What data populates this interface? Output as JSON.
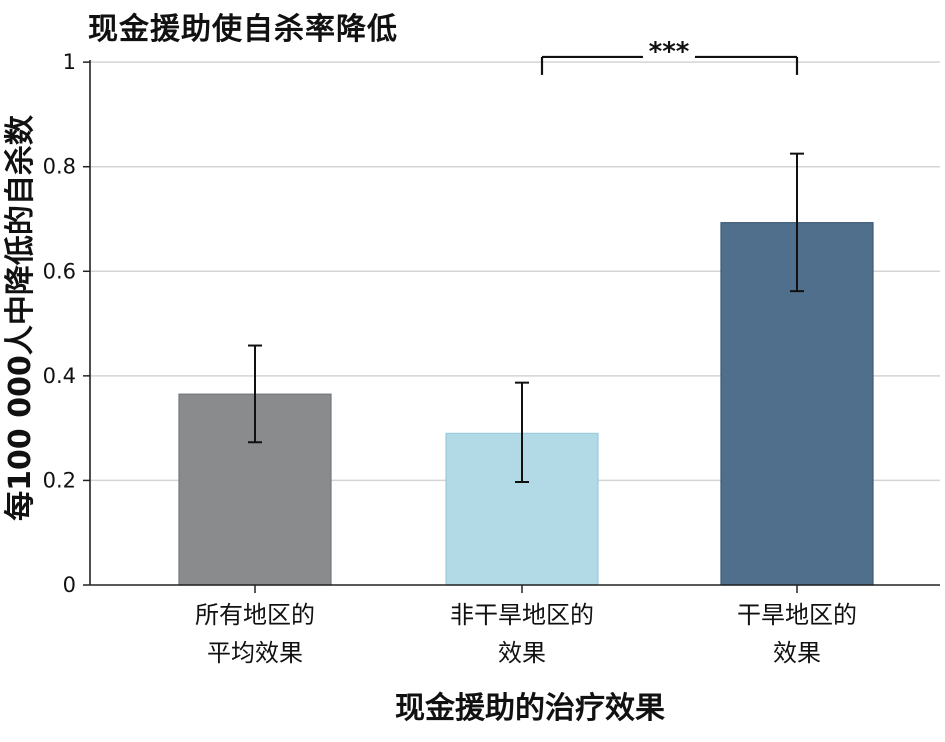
{
  "chart_data": {
    "type": "bar",
    "title": "现金援助使自杀率降低",
    "xlabel": "现金援助的治疗效果",
    "ylabel": "每100 000人中降低的自杀数",
    "ylim": [
      0,
      1.05
    ],
    "y_ticks": [
      0,
      0.2,
      0.4,
      0.6,
      0.8,
      1
    ],
    "y_tick_labels": [
      "0",
      "0.2",
      "0.4",
      "0.6",
      "0.8",
      "1"
    ],
    "grid": true,
    "categories": [
      [
        "所有地区的",
        "平均效果"
      ],
      [
        "非干旱地区的",
        "效果"
      ],
      [
        "干旱地区的",
        "效果"
      ]
    ],
    "values": [
      0.365,
      0.29,
      0.693
    ],
    "error_low": [
      0.273,
      0.197,
      0.562
    ],
    "error_high": [
      0.458,
      0.387,
      0.825
    ],
    "colors": [
      "#8a8b8d",
      "#b2d9e6",
      "#4f6f8c"
    ],
    "edge_colors": [
      "#76777a",
      "#9ccbd9",
      "#3e5b76"
    ],
    "significance": {
      "label": "***",
      "between": [
        1,
        2
      ],
      "y": 1.01
    }
  }
}
